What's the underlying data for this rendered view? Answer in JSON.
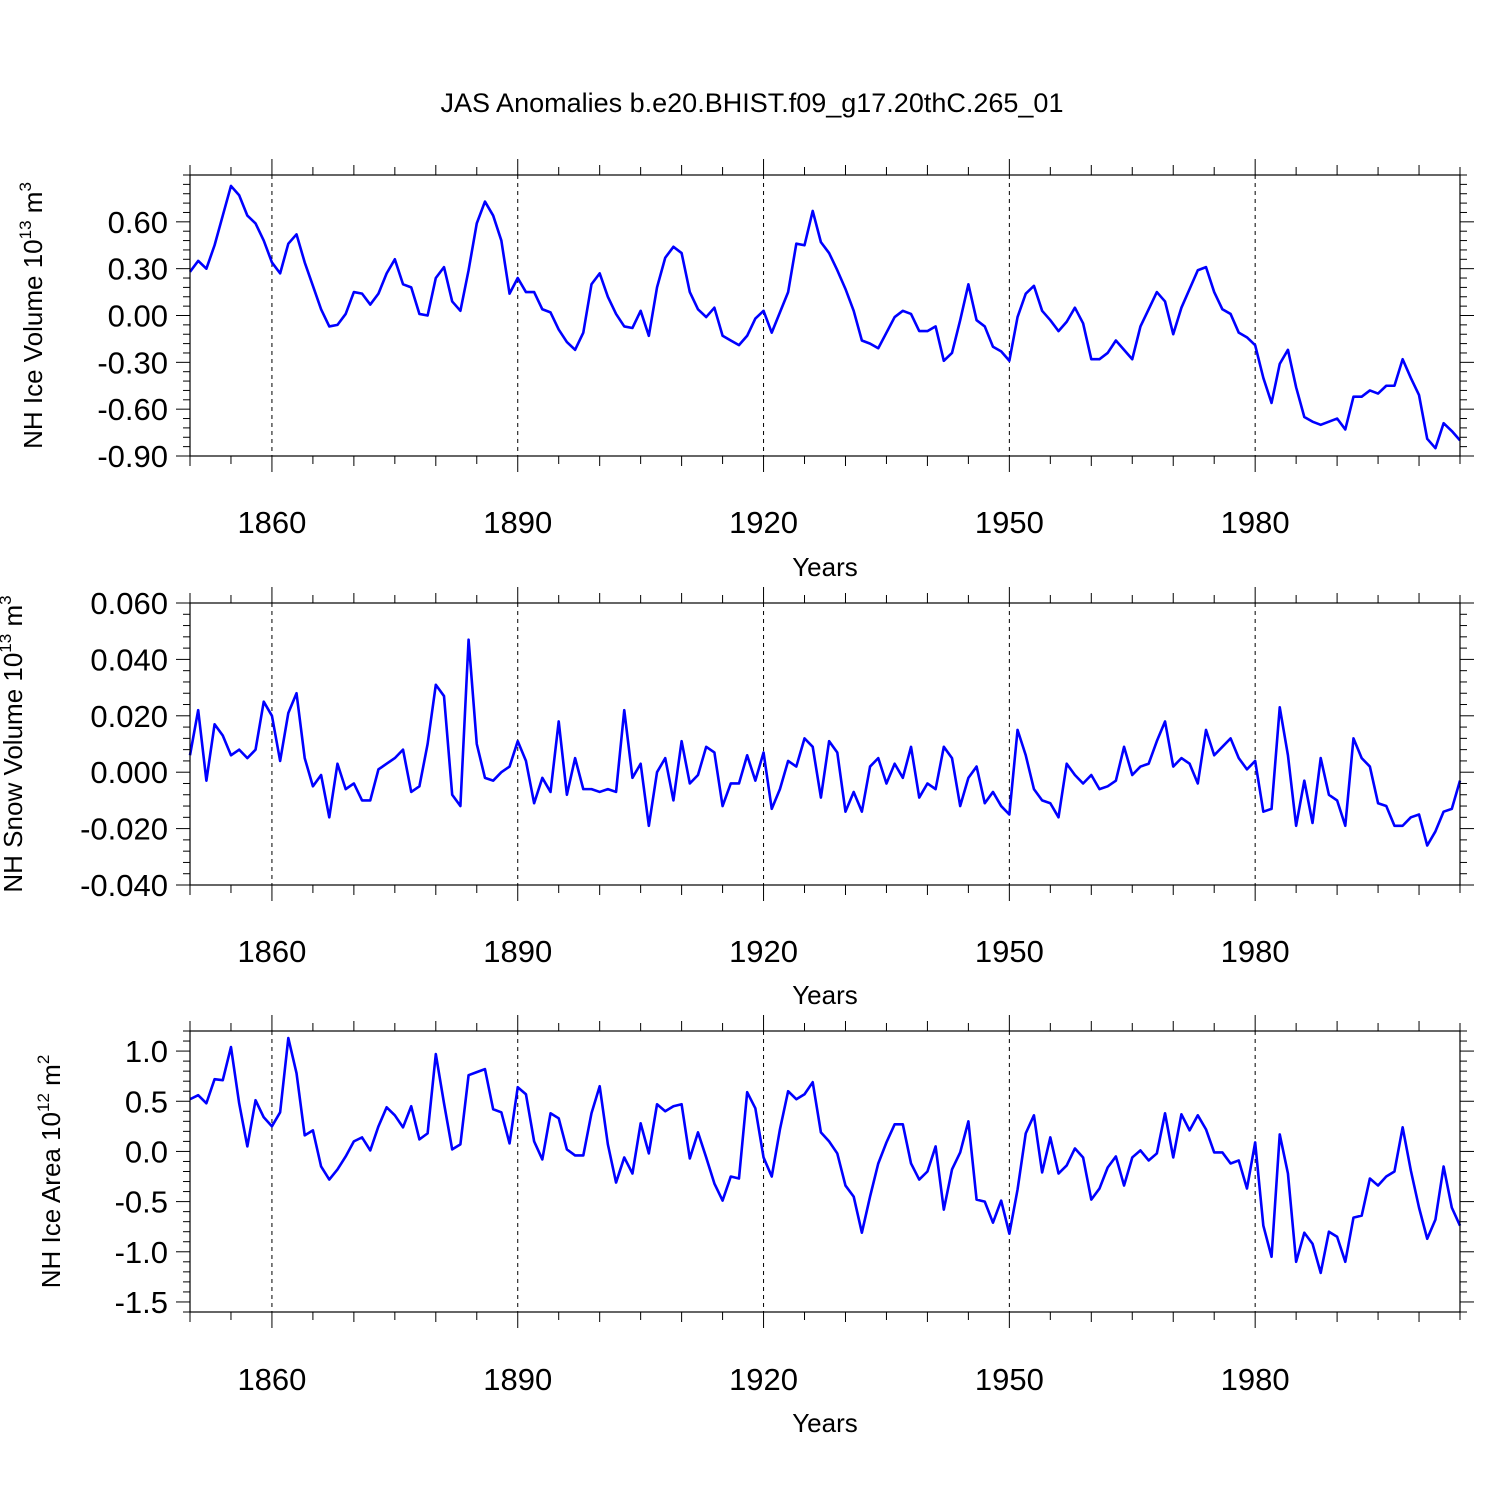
{
  "title": "JAS Anomalies b.e20.BHIST.f09_g17.20thC.265_01",
  "line_color": "#0000ff",
  "chart_data": [
    {
      "type": "line",
      "ylabel": {
        "text": "NH Ice Volume 10",
        "sup": "13",
        "unit": " m",
        "unit_sup": "3"
      },
      "xlabel": "Years",
      "xlim": [
        1850,
        2005
      ],
      "ylim": [
        -0.9,
        0.9
      ],
      "xticks": [
        1860,
        1890,
        1920,
        1950,
        1980
      ],
      "xtick_labels": [
        "1860",
        "1890",
        "1920",
        "1950",
        "1980"
      ],
      "yticks": [
        -0.9,
        -0.6,
        -0.3,
        0.0,
        0.3,
        0.6
      ],
      "ytick_labels": [
        "-0.90",
        "-0.60",
        "-0.30",
        "0.00",
        "0.30",
        "0.60"
      ],
      "grid": "vertical dashed at major x ticks",
      "x_start": 1850,
      "values": [
        0.28,
        0.35,
        0.3,
        0.45,
        0.64,
        0.83,
        0.77,
        0.64,
        0.59,
        0.48,
        0.34,
        0.27,
        0.46,
        0.52,
        0.34,
        0.19,
        0.04,
        -0.07,
        -0.06,
        0.01,
        0.15,
        0.14,
        0.07,
        0.14,
        0.27,
        0.36,
        0.2,
        0.18,
        0.01,
        0.0,
        0.24,
        0.31,
        0.09,
        0.03,
        0.29,
        0.59,
        0.73,
        0.64,
        0.48,
        0.14,
        0.24,
        0.15,
        0.15,
        0.04,
        0.02,
        -0.09,
        -0.17,
        -0.22,
        -0.11,
        0.2,
        0.27,
        0.12,
        0.01,
        -0.07,
        -0.08,
        0.03,
        -0.13,
        0.18,
        0.37,
        0.44,
        0.4,
        0.15,
        0.04,
        -0.01,
        0.05,
        -0.13,
        -0.16,
        -0.19,
        -0.13,
        -0.02,
        0.03,
        -0.11,
        0.02,
        0.15,
        0.46,
        0.45,
        0.67,
        0.47,
        0.4,
        0.29,
        0.17,
        0.03,
        -0.16,
        -0.18,
        -0.21,
        -0.11,
        -0.01,
        0.03,
        0.01,
        -0.1,
        -0.1,
        -0.07,
        -0.29,
        -0.24,
        -0.03,
        0.2,
        -0.03,
        -0.07,
        -0.2,
        -0.23,
        -0.29,
        -0.01,
        0.14,
        0.19,
        0.03,
        -0.03,
        -0.1,
        -0.04,
        0.05,
        -0.05,
        -0.28,
        -0.28,
        -0.24,
        -0.16,
        -0.22,
        -0.28,
        -0.07,
        0.04,
        0.15,
        0.09,
        -0.12,
        0.05,
        0.17,
        0.29,
        0.31,
        0.15,
        0.04,
        0.01,
        -0.11,
        -0.14,
        -0.19,
        -0.4,
        -0.56,
        -0.31,
        -0.22,
        -0.46,
        -0.65,
        -0.68,
        -0.7,
        -0.68,
        -0.66,
        -0.73,
        -0.52,
        -0.52,
        -0.48,
        -0.5,
        -0.45,
        -0.45,
        -0.28,
        -0.4,
        -0.51,
        -0.79,
        -0.85,
        -0.69,
        -0.74,
        -0.8
      ]
    },
    {
      "type": "line",
      "ylabel": {
        "text": "NH Snow Volume 10",
        "sup": "13",
        "unit": " m",
        "unit_sup": "3"
      },
      "xlabel": "Years",
      "xlim": [
        1850,
        2005
      ],
      "ylim": [
        -0.04,
        0.06
      ],
      "xticks": [
        1860,
        1890,
        1920,
        1950,
        1980
      ],
      "xtick_labels": [
        "1860",
        "1890",
        "1920",
        "1950",
        "1980"
      ],
      "yticks": [
        -0.04,
        -0.02,
        0.0,
        0.02,
        0.04,
        0.06
      ],
      "ytick_labels": [
        "-0.040",
        "-0.020",
        "0.000",
        "0.020",
        "0.040",
        "0.060"
      ],
      "grid": "vertical dashed at major x ticks",
      "x_start": 1850,
      "values": [
        0.006,
        0.022,
        -0.003,
        0.017,
        0.013,
        0.006,
        0.008,
        0.005,
        0.008,
        0.025,
        0.02,
        0.004,
        0.021,
        0.028,
        0.005,
        -0.005,
        -0.001,
        -0.016,
        0.003,
        -0.006,
        -0.004,
        -0.01,
        -0.01,
        0.001,
        0.003,
        0.005,
        0.008,
        -0.007,
        -0.005,
        0.01,
        0.031,
        0.027,
        -0.008,
        -0.012,
        0.047,
        0.01,
        -0.002,
        -0.003,
        0.0,
        0.002,
        0.011,
        0.004,
        -0.011,
        -0.002,
        -0.007,
        0.018,
        -0.008,
        0.005,
        -0.006,
        -0.006,
        -0.007,
        -0.006,
        -0.007,
        0.022,
        -0.002,
        0.003,
        -0.019,
        0.0,
        0.005,
        -0.01,
        0.011,
        -0.004,
        -0.001,
        0.009,
        0.007,
        -0.012,
        -0.004,
        -0.004,
        0.006,
        -0.003,
        0.007,
        -0.013,
        -0.006,
        0.004,
        0.002,
        0.012,
        0.009,
        -0.009,
        0.011,
        0.007,
        -0.014,
        -0.007,
        -0.014,
        0.002,
        0.005,
        -0.004,
        0.003,
        -0.002,
        0.009,
        -0.009,
        -0.004,
        -0.006,
        0.009,
        0.005,
        -0.012,
        -0.002,
        0.002,
        -0.011,
        -0.007,
        -0.012,
        -0.015,
        0.015,
        0.006,
        -0.006,
        -0.01,
        -0.011,
        -0.016,
        0.003,
        -0.001,
        -0.004,
        -0.001,
        -0.006,
        -0.005,
        -0.003,
        0.009,
        -0.001,
        0.002,
        0.003,
        0.011,
        0.018,
        0.002,
        0.005,
        0.003,
        -0.004,
        0.015,
        0.006,
        0.009,
        0.012,
        0.005,
        0.001,
        0.004,
        -0.014,
        -0.013,
        0.023,
        0.006,
        -0.019,
        -0.003,
        -0.018,
        0.005,
        -0.008,
        -0.01,
        -0.019,
        0.012,
        0.005,
        0.002,
        -0.011,
        -0.012,
        -0.019,
        -0.019,
        -0.016,
        -0.015,
        -0.026,
        -0.021,
        -0.014,
        -0.013,
        -0.003
      ]
    },
    {
      "type": "line",
      "ylabel": {
        "text": "NH Ice Area 10",
        "sup": "12",
        "unit": " m",
        "unit_sup": "2"
      },
      "xlabel": "Years",
      "xlim": [
        1850,
        2005
      ],
      "ylim": [
        -1.6,
        1.2
      ],
      "xticks": [
        1860,
        1890,
        1920,
        1950,
        1980
      ],
      "xtick_labels": [
        "1860",
        "1890",
        "1920",
        "1950",
        "1980"
      ],
      "yticks": [
        -1.5,
        -1.0,
        -0.5,
        0.0,
        0.5,
        1.0
      ],
      "ytick_labels": [
        "-1.5",
        "-1.0",
        "-0.5",
        "0.0",
        "0.5",
        "1.0"
      ],
      "grid": "vertical dashed at major x ticks",
      "x_start": 1850,
      "values": [
        0.52,
        0.56,
        0.48,
        0.72,
        0.71,
        1.04,
        0.48,
        0.05,
        0.51,
        0.34,
        0.25,
        0.39,
        1.13,
        0.78,
        0.16,
        0.21,
        -0.15,
        -0.28,
        -0.18,
        -0.05,
        0.1,
        0.14,
        0.01,
        0.25,
        0.44,
        0.36,
        0.24,
        0.45,
        0.12,
        0.18,
        0.97,
        0.48,
        0.02,
        0.07,
        0.76,
        0.79,
        0.82,
        0.42,
        0.39,
        0.08,
        0.64,
        0.57,
        0.1,
        -0.08,
        0.38,
        0.33,
        0.02,
        -0.04,
        -0.04,
        0.38,
        0.65,
        0.07,
        -0.31,
        -0.06,
        -0.22,
        0.28,
        -0.02,
        0.47,
        0.4,
        0.45,
        0.47,
        -0.07,
        0.19,
        -0.06,
        -0.32,
        -0.49,
        -0.25,
        -0.27,
        0.59,
        0.43,
        -0.06,
        -0.25,
        0.22,
        0.6,
        0.52,
        0.57,
        0.69,
        0.19,
        0.1,
        -0.02,
        -0.34,
        -0.45,
        -0.81,
        -0.45,
        -0.12,
        0.09,
        0.27,
        0.27,
        -0.12,
        -0.28,
        -0.2,
        0.05,
        -0.58,
        -0.18,
        -0.01,
        0.3,
        -0.48,
        -0.5,
        -0.71,
        -0.49,
        -0.82,
        -0.38,
        0.18,
        0.36,
        -0.21,
        0.14,
        -0.22,
        -0.14,
        0.03,
        -0.06,
        -0.48,
        -0.37,
        -0.16,
        -0.05,
        -0.34,
        -0.06,
        0.01,
        -0.09,
        -0.02,
        0.38,
        -0.06,
        0.37,
        0.21,
        0.36,
        0.22,
        -0.01,
        -0.01,
        -0.12,
        -0.09,
        -0.37,
        0.09,
        -0.74,
        -1.05,
        0.17,
        -0.22,
        -1.1,
        -0.81,
        -0.92,
        -1.21,
        -0.8,
        -0.85,
        -1.1,
        -0.66,
        -0.64,
        -0.27,
        -0.34,
        -0.25,
        -0.2,
        0.24,
        -0.19,
        -0.56,
        -0.87,
        -0.68,
        -0.15,
        -0.56,
        -0.74
      ]
    }
  ]
}
